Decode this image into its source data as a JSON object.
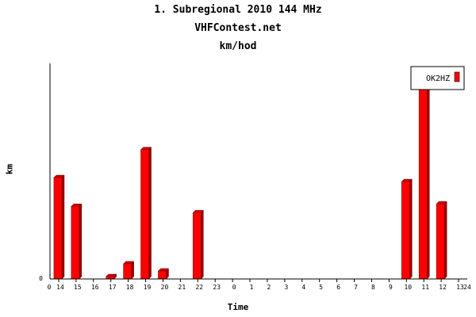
{
  "chart_data": {
    "type": "bar",
    "title": "1. Subregional 2010 144 MHz",
    "subtitle": "VHFContest.net",
    "subtitle2": "km/hod",
    "xlabel": "Time",
    "ylabel": "km",
    "x_axis_start_label": "0",
    "x_axis_end_label": "24",
    "y_axis_zero_label": "0",
    "categories": [
      "14",
      "15",
      "16",
      "17",
      "18",
      "19",
      "20",
      "21",
      "22",
      "23",
      "0",
      "1",
      "2",
      "3",
      "4",
      "5",
      "6",
      "7",
      "8",
      "9",
      "10",
      "11",
      "12",
      "13"
    ],
    "series": [
      {
        "name": "OK2HZ",
        "color": "#ff0000",
        "values": [
          127,
          91,
          0,
          3,
          19,
          162,
          10,
          0,
          83,
          0,
          0,
          0,
          0,
          0,
          0,
          0,
          0,
          0,
          0,
          0,
          122,
          238,
          94,
          0
        ]
      }
    ],
    "ylim": [
      0,
      270
    ],
    "legend_position": "top-right",
    "grid": false
  }
}
